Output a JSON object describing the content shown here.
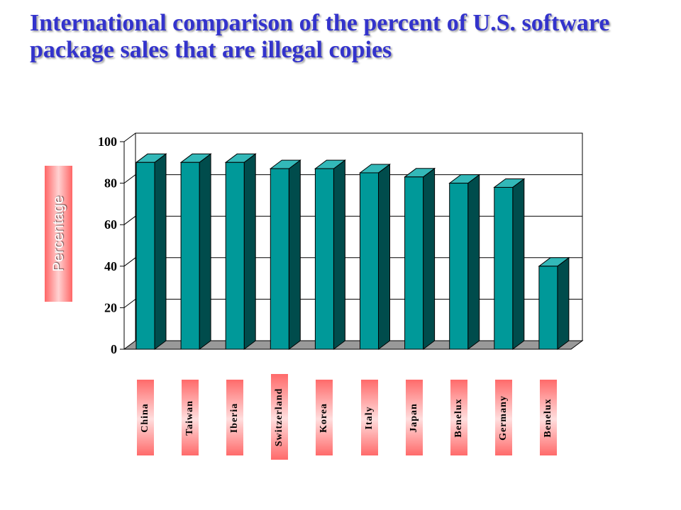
{
  "chart_data": {
    "type": "bar",
    "title": "International comparison of the percent of U.S. software package sales that are illegal copies",
    "ylabel": "Percentage",
    "categories": [
      "China",
      "Taiwan",
      "Iberia",
      "Switzerland",
      "Korea",
      "Italy",
      "Japan",
      "Benelux",
      "Germany",
      "Benelux"
    ],
    "values": [
      90,
      90,
      90,
      87,
      87,
      85,
      83,
      80,
      78,
      40
    ],
    "ylim": [
      0,
      100
    ],
    "yticks": [
      0,
      20,
      40,
      60,
      80,
      100
    ],
    "grid": true,
    "style": "3d",
    "colors": {
      "bar_front": "#009999",
      "bar_top": "#33b8b8",
      "bar_side": "#004c4c",
      "floor": "#999999",
      "title": "#3333cc",
      "label_box": "#ff6666"
    }
  }
}
